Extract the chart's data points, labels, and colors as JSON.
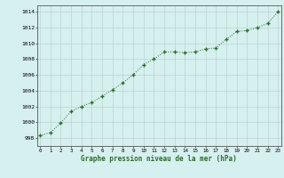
{
  "x": [
    0,
    1,
    2,
    3,
    4,
    5,
    6,
    7,
    8,
    9,
    10,
    11,
    12,
    13,
    14,
    15,
    16,
    17,
    18,
    19,
    20,
    21,
    22,
    23
  ],
  "y": [
    998.3,
    998.7,
    999.9,
    1001.4,
    1002.0,
    1002.5,
    1003.3,
    1004.1,
    1005.0,
    1006.0,
    1007.3,
    1008.0,
    1008.9,
    1008.9,
    1008.8,
    1008.9,
    1009.3,
    1009.4,
    1010.5,
    1011.5,
    1011.6,
    1012.0,
    1012.5,
    1014.0
  ],
  "line_color": "#2d6a2d",
  "marker": "P",
  "bg_color": "#d6f0ef",
  "grid_color": "#b8d4d0",
  "xlabel": "Graphe pression niveau de la mer (hPa)",
  "xlabel_color": "#2d6a2d",
  "ylabel_ticks": [
    998,
    1000,
    1002,
    1004,
    1006,
    1008,
    1010,
    1012,
    1014
  ],
  "xtick_labels": [
    "0",
    "1",
    "2",
    "3",
    "4",
    "5",
    "6",
    "7",
    "8",
    "9",
    "10",
    "11",
    "12",
    "13",
    "14",
    "15",
    "16",
    "17",
    "18",
    "19",
    "20",
    "21",
    "22",
    "23"
  ],
  "xlim": [
    -0.3,
    23.3
  ],
  "ylim": [
    997.0,
    1014.8
  ]
}
